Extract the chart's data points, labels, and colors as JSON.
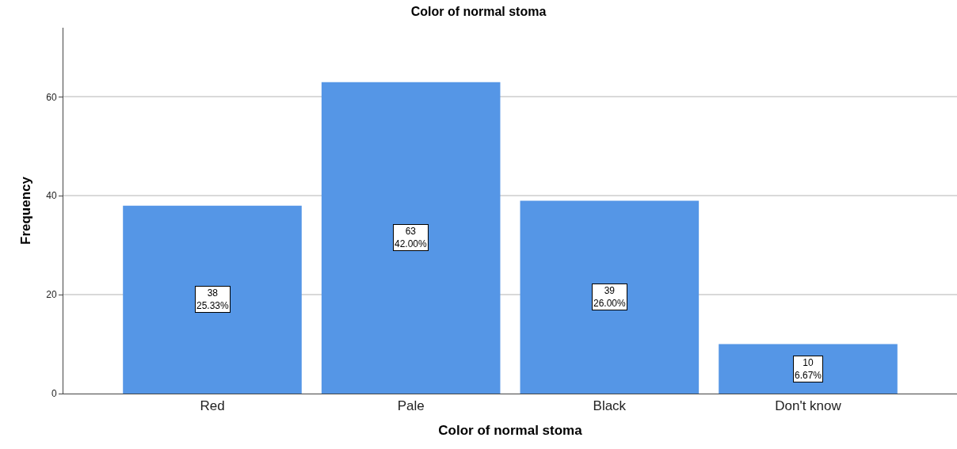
{
  "chart_data": {
    "type": "bar",
    "title": "Color of normal stoma",
    "xlabel": "Color of normal stoma",
    "ylabel": "Frequency",
    "categories": [
      "Red",
      "Pale",
      "Black",
      "Don't know"
    ],
    "values": [
      38,
      63,
      39,
      10
    ],
    "value_labels": [
      "38\n25.33%",
      "63\n42.00%",
      "39\n26.00%",
      "10\n6.67%"
    ],
    "color": "#5596e6",
    "ylim": [
      0,
      74
    ],
    "yticks": [
      0,
      20,
      40,
      60
    ],
    "grid": "y",
    "legend": false
  }
}
